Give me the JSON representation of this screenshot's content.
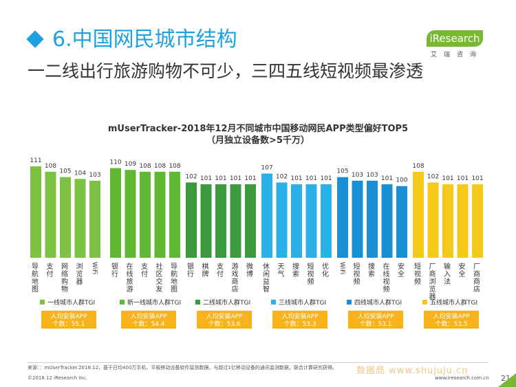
{
  "header": {
    "section_title": "6.中国网民城市结构",
    "subtitle": "一二线出行旅游购物不可少，三四五线短视频最渗透"
  },
  "logo": {
    "brand": "iResearch",
    "chinese": "艾瑞咨询",
    "color": "#78b833"
  },
  "chart_data": {
    "type": "bar",
    "title": "mUserTracker-2018年12月不同城市中国移动网民APP类型偏好TOP5",
    "subtitle": "（月独立设备数>5千万）",
    "groups": [
      {
        "name": "一线城市人群TGI",
        "color": "#7dc242",
        "categories": [
          "导航地图",
          "支付",
          "网络购物",
          "浏览器",
          "WiFi"
        ],
        "values": [
          111,
          108,
          105,
          104,
          103
        ],
        "install_label": "人均安装APP",
        "install_count": "个数：55.1"
      },
      {
        "name": "新一线城市人群TGI",
        "color": "#60b832",
        "categories": [
          "银行",
          "在线旅游",
          "支付",
          "社区交友",
          "导航地图"
        ],
        "values": [
          110,
          109,
          108,
          108,
          108
        ],
        "install_label": "人均安装APP",
        "install_count": "个数：54.4"
      },
      {
        "name": "二线城市人群TGI",
        "color": "#3a9a3c",
        "categories": [
          "银行",
          "棋牌",
          "支付",
          "游戏商店",
          "微博"
        ],
        "values": [
          102,
          101,
          101,
          101,
          101
        ],
        "install_label": "人均安装APP",
        "install_count": "个数：53.6"
      },
      {
        "name": "三线城市人群TGI",
        "color": "#2cb0e8",
        "categories": [
          "休闲益智",
          "天气",
          "搜索",
          "短视频",
          "优化"
        ],
        "values": [
          107,
          102,
          101,
          101,
          101
        ],
        "install_label": "人均安装APP",
        "install_count": "个数：53.3"
      },
      {
        "name": "四线城市人群TGI",
        "color": "#1a8fd6",
        "categories": [
          "WiFi",
          "短视频",
          "搜索",
          "在线视频",
          "安全"
        ],
        "values": [
          105,
          103,
          103,
          101,
          100
        ],
        "install_label": "人均安装APP",
        "install_count": "个数：53.1"
      },
      {
        "name": "五线城市人群TGI",
        "color": "#f7c81c",
        "categories": [
          "短视频",
          "厂商浏览器",
          "输入法",
          "安全",
          "厂商商店"
        ],
        "values": [
          108,
          102,
          101,
          101,
          101
        ],
        "install_label": "人均安装APP",
        "install_count": "个数：53.5"
      }
    ],
    "legend_position": "bottom",
    "box_color": "#f7b21c",
    "grid": false
  },
  "footer": {
    "source": "来源：：mUserTracker.2018.12，基于日均400万手机、平板移动设备软件监测数据，与超过1亿移动设备的通讯监测数据，联合计算研究获得。",
    "copyright": "©2018.12 iResearch Inc.",
    "website": "www.iresearch.com.cn",
    "page": "21",
    "watermark": "数据局 www.shujuju.cn"
  }
}
